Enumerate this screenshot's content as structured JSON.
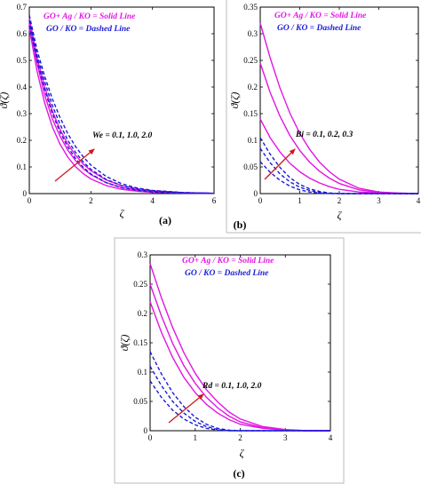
{
  "colors": {
    "solid": "#e316e3",
    "dashed": "#1b1bd6",
    "arrow": "#d01818",
    "frame": "#000000"
  },
  "chart_data": [
    {
      "type": "line",
      "panel_label": "(a)",
      "xlabel": "ζ",
      "ylabel": "ϑ(ζ)",
      "xlim": [
        0,
        6
      ],
      "ylim": [
        0,
        0.7
      ],
      "xticks": [
        "0",
        "2",
        "4",
        "6"
      ],
      "yticks": [
        "0",
        "0.1",
        "0.2",
        "0.3",
        "0.4",
        "0.5",
        "0.6",
        "0.7"
      ],
      "legend": [
        "GO+ Ag / KO = Solid Line",
        "GO / KO = Dashed Line"
      ],
      "annotation": "We = 0.1, 1.0, 2.0",
      "series": [
        {
          "style": "solid",
          "x": [
            0,
            0.25,
            0.5,
            0.75,
            1,
            1.25,
            1.5,
            1.75,
            2,
            2.5,
            3,
            3.5,
            4,
            5,
            6
          ],
          "y": [
            0.62,
            0.46,
            0.34,
            0.25,
            0.185,
            0.137,
            0.101,
            0.075,
            0.055,
            0.03,
            0.016,
            0.009,
            0.005,
            0.002,
            0.001
          ]
        },
        {
          "style": "solid",
          "x": [
            0,
            0.25,
            0.5,
            0.75,
            1,
            1.25,
            1.5,
            1.75,
            2,
            2.5,
            3,
            3.5,
            4,
            5,
            6
          ],
          "y": [
            0.64,
            0.49,
            0.37,
            0.28,
            0.215,
            0.163,
            0.124,
            0.094,
            0.071,
            0.041,
            0.023,
            0.013,
            0.007,
            0.003,
            0.001
          ]
        },
        {
          "style": "solid",
          "x": [
            0,
            0.25,
            0.5,
            0.75,
            1,
            1.25,
            1.5,
            1.75,
            2,
            2.5,
            3,
            3.5,
            4,
            5,
            6
          ],
          "y": [
            0.66,
            0.51,
            0.4,
            0.31,
            0.24,
            0.186,
            0.144,
            0.111,
            0.086,
            0.051,
            0.03,
            0.018,
            0.011,
            0.004,
            0.001
          ]
        },
        {
          "style": "dashed",
          "x": [
            0,
            0.25,
            0.5,
            0.75,
            1,
            1.25,
            1.5,
            1.75,
            2,
            2.5,
            3,
            3.5,
            4,
            5,
            6
          ],
          "y": [
            0.63,
            0.5,
            0.39,
            0.3,
            0.23,
            0.175,
            0.132,
            0.099,
            0.074,
            0.041,
            0.022,
            0.012,
            0.006,
            0.002,
            0.001
          ]
        },
        {
          "style": "dashed",
          "x": [
            0,
            0.25,
            0.5,
            0.75,
            1,
            1.25,
            1.5,
            1.75,
            2,
            2.5,
            3,
            3.5,
            4,
            5,
            6
          ],
          "y": [
            0.65,
            0.52,
            0.42,
            0.33,
            0.26,
            0.2,
            0.155,
            0.119,
            0.091,
            0.053,
            0.03,
            0.017,
            0.009,
            0.003,
            0.001
          ]
        },
        {
          "style": "dashed",
          "x": [
            0,
            0.25,
            0.5,
            0.75,
            1,
            1.25,
            1.5,
            1.75,
            2,
            2.5,
            3,
            3.5,
            4,
            5,
            6
          ],
          "y": [
            0.67,
            0.54,
            0.44,
            0.355,
            0.285,
            0.225,
            0.177,
            0.138,
            0.107,
            0.064,
            0.037,
            0.021,
            0.012,
            0.004,
            0.001
          ]
        }
      ]
    },
    {
      "type": "line",
      "panel_label": "(b)",
      "xlabel": "ζ",
      "ylabel": "ϑ(ζ)",
      "xlim": [
        0,
        4
      ],
      "ylim": [
        0,
        0.35
      ],
      "xticks": [
        "0",
        "1",
        "2",
        "3",
        "4"
      ],
      "yticks": [
        "0",
        "0.05",
        "0.1",
        "0.15",
        "0.2",
        "0.25",
        "0.3",
        "0.35"
      ],
      "legend": [
        "GO+ Ag / KO = Solid Line",
        "GO / KO = Dashed Line"
      ],
      "annotation": "Bi = 0.1, 0.2, 0.3",
      "series": [
        {
          "style": "solid",
          "x": [
            0,
            0.25,
            0.5,
            0.75,
            1,
            1.25,
            1.5,
            1.75,
            2,
            2.5,
            3,
            3.5,
            4
          ],
          "y": [
            0.14,
            0.105,
            0.078,
            0.057,
            0.041,
            0.029,
            0.02,
            0.013,
            0.008,
            0.003,
            0.001,
            0,
            0
          ]
        },
        {
          "style": "solid",
          "x": [
            0,
            0.25,
            0.5,
            0.75,
            1,
            1.25,
            1.5,
            1.75,
            2,
            2.5,
            3,
            3.5,
            4
          ],
          "y": [
            0.245,
            0.19,
            0.145,
            0.109,
            0.081,
            0.059,
            0.042,
            0.029,
            0.019,
            0.007,
            0.002,
            0.001,
            0
          ]
        },
        {
          "style": "solid",
          "x": [
            0,
            0.25,
            0.5,
            0.75,
            1,
            1.25,
            1.5,
            1.75,
            2,
            2.5,
            3,
            3.5,
            4
          ],
          "y": [
            0.32,
            0.255,
            0.198,
            0.151,
            0.113,
            0.083,
            0.059,
            0.041,
            0.027,
            0.01,
            0.003,
            0.001,
            0
          ]
        },
        {
          "style": "dashed",
          "x": [
            0,
            0.25,
            0.5,
            0.75,
            1,
            1.25,
            1.5,
            1.75,
            2,
            2.5,
            3,
            3.5,
            4
          ],
          "y": [
            0.06,
            0.04,
            0.025,
            0.014,
            0.007,
            0.003,
            0.001,
            0,
            0,
            0,
            0,
            0,
            0
          ]
        },
        {
          "style": "dashed",
          "x": [
            0,
            0.25,
            0.5,
            0.75,
            1,
            1.25,
            1.5,
            1.75,
            2,
            2.5,
            3,
            3.5,
            4
          ],
          "y": [
            0.085,
            0.058,
            0.037,
            0.022,
            0.012,
            0.006,
            0.002,
            0.001,
            0,
            0,
            0,
            0,
            0
          ]
        },
        {
          "style": "dashed",
          "x": [
            0,
            0.25,
            0.5,
            0.75,
            1,
            1.25,
            1.5,
            1.75,
            2,
            2.5,
            3,
            3.5,
            4
          ],
          "y": [
            0.105,
            0.074,
            0.049,
            0.03,
            0.017,
            0.009,
            0.004,
            0.001,
            0,
            0,
            0,
            0,
            0
          ]
        }
      ]
    },
    {
      "type": "line",
      "panel_label": "(c)",
      "xlabel": "ζ",
      "ylabel": "ϑ(ζ)",
      "xlim": [
        0,
        4
      ],
      "ylim": [
        0,
        0.3
      ],
      "xticks": [
        "0",
        "1",
        "2",
        "3",
        "4"
      ],
      "yticks": [
        "0",
        "0.05",
        "0.1",
        "0.15",
        "0.2",
        "0.25",
        "0.3"
      ],
      "legend": [
        "GO+ Ag / KO = Solid Line",
        "GO / KO = Dashed Line"
      ],
      "annotation": "Rd = 0.1, 1.0, 2.0",
      "series": [
        {
          "style": "solid",
          "x": [
            0,
            0.25,
            0.5,
            0.75,
            1,
            1.25,
            1.5,
            1.75,
            2,
            2.5,
            3,
            3.5,
            4
          ],
          "y": [
            0.22,
            0.168,
            0.125,
            0.091,
            0.065,
            0.045,
            0.03,
            0.019,
            0.011,
            0.004,
            0.001,
            0,
            0
          ]
        },
        {
          "style": "solid",
          "x": [
            0,
            0.25,
            0.5,
            0.75,
            1,
            1.25,
            1.5,
            1.75,
            2,
            2.5,
            3,
            3.5,
            4
          ],
          "y": [
            0.25,
            0.196,
            0.149,
            0.111,
            0.081,
            0.057,
            0.039,
            0.025,
            0.015,
            0.005,
            0.001,
            0,
            0
          ]
        },
        {
          "style": "solid",
          "x": [
            0,
            0.25,
            0.5,
            0.75,
            1,
            1.25,
            1.5,
            1.75,
            2,
            2.5,
            3,
            3.5,
            4
          ],
          "y": [
            0.285,
            0.227,
            0.176,
            0.133,
            0.098,
            0.07,
            0.049,
            0.032,
            0.02,
            0.007,
            0.002,
            0,
            0
          ]
        },
        {
          "style": "dashed",
          "x": [
            0,
            0.25,
            0.5,
            0.75,
            1,
            1.25,
            1.5,
            1.75,
            2,
            2.5,
            3,
            3.5,
            4
          ],
          "y": [
            0.085,
            0.057,
            0.035,
            0.02,
            0.01,
            0.004,
            0.001,
            0,
            0,
            0,
            0,
            0,
            0
          ]
        },
        {
          "style": "dashed",
          "x": [
            0,
            0.25,
            0.5,
            0.75,
            1,
            1.25,
            1.5,
            1.75,
            2,
            2.5,
            3,
            3.5,
            4
          ],
          "y": [
            0.11,
            0.077,
            0.05,
            0.03,
            0.016,
            0.007,
            0.002,
            0,
            0,
            0,
            0,
            0,
            0
          ]
        },
        {
          "style": "dashed",
          "x": [
            0,
            0.25,
            0.5,
            0.75,
            1,
            1.25,
            1.5,
            1.75,
            2,
            2.5,
            3,
            3.5,
            4
          ],
          "y": [
            0.135,
            0.097,
            0.065,
            0.041,
            0.023,
            0.011,
            0.004,
            0.001,
            0,
            0,
            0,
            0,
            0
          ]
        }
      ]
    }
  ]
}
